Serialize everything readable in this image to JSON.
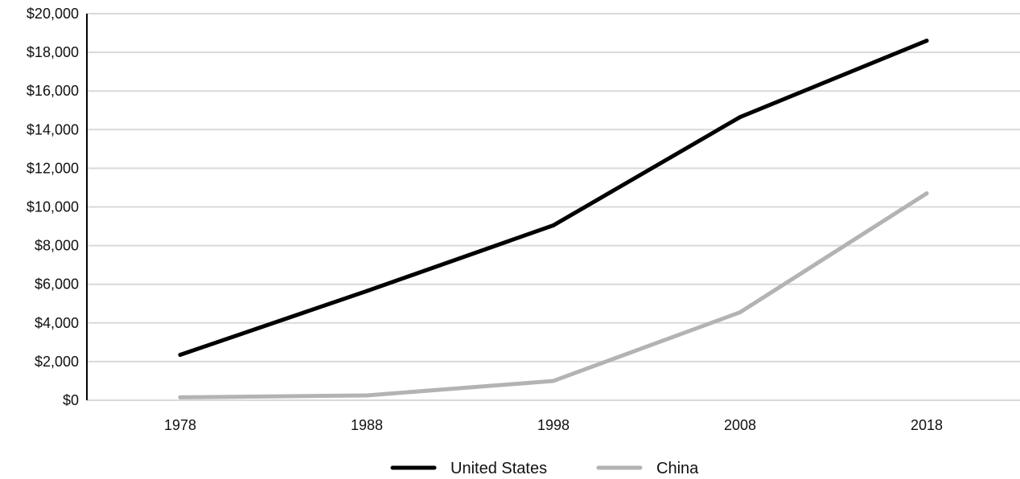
{
  "chart_data": {
    "type": "line",
    "categories": [
      "1978",
      "1988",
      "1998",
      "2008",
      "2018"
    ],
    "y_tick_labels": [
      "$0",
      "$2,000",
      "$4,000",
      "$6,000",
      "$8,000",
      "$10,000",
      "$12,000",
      "$14,000",
      "$16,000",
      "$18,000",
      "$20,000"
    ],
    "ylim": [
      0,
      20000
    ],
    "grid": "horizontal",
    "legend_position": "bottom",
    "series": [
      {
        "name": "United States",
        "color": "#000000",
        "values": [
          2350,
          5650,
          9050,
          14650,
          18600
        ]
      },
      {
        "name": "China",
        "color": "#b3b3b3",
        "values": [
          150,
          250,
          1000,
          4550,
          10700
        ]
      }
    ]
  }
}
